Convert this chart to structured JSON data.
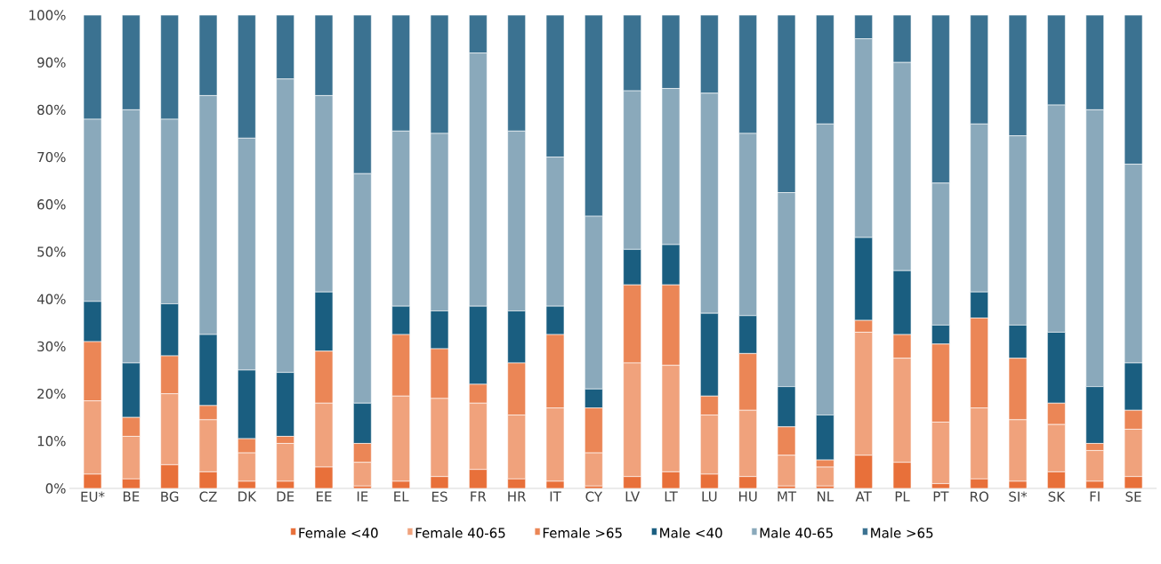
{
  "chart_data": {
    "type": "bar",
    "stacked": true,
    "categories": [
      "EU*",
      "BE",
      "BG",
      "CZ",
      "DK",
      "DE",
      "EE",
      "IE",
      "EL",
      "ES",
      "FR",
      "HR",
      "IT",
      "CY",
      "LV",
      "LT",
      "LU",
      "HU",
      "MT",
      "NL",
      "AT",
      "PL",
      "PT",
      "RO",
      "SI*",
      "SK",
      "FI",
      "SE"
    ],
    "series": [
      {
        "name": "Female <40",
        "color": "#e8703a",
        "values": [
          3,
          2,
          5,
          3.5,
          1.5,
          1.5,
          4.5,
          0.5,
          1.5,
          2.5,
          4,
          2,
          1.5,
          0.5,
          2.5,
          3.5,
          3,
          2.5,
          0.5,
          0.5,
          7,
          5.5,
          1,
          2,
          1.5,
          3.5,
          1.5,
          2.5
        ]
      },
      {
        "name": "Female 40-65",
        "color": "#f0a27c",
        "values": [
          15.5,
          9,
          15,
          11,
          6,
          8,
          13.5,
          5,
          18,
          16.5,
          14,
          13.5,
          15.5,
          7,
          24,
          22.5,
          12.5,
          14,
          6.5,
          4,
          26,
          22,
          13,
          15,
          13,
          10,
          6.5,
          10
        ]
      },
      {
        "name": "Female >65",
        "color": "#eb8656",
        "values": [
          12.5,
          4,
          8,
          3,
          3,
          1.5,
          11,
          4,
          13,
          10.5,
          4,
          11,
          15.5,
          9.5,
          16.5,
          17,
          4,
          12,
          6,
          1.5,
          2.5,
          5,
          16.5,
          19,
          13,
          4.5,
          1.5,
          4
        ]
      },
      {
        "name": "Male <40",
        "color": "#1a5e80",
        "values": [
          8.5,
          11.5,
          11,
          15,
          14.5,
          13.5,
          12.5,
          8.5,
          6,
          8,
          16.5,
          11,
          6,
          4,
          7.5,
          8.5,
          17.5,
          8,
          8.5,
          9.5,
          17.5,
          13.5,
          4,
          5.5,
          7,
          15,
          12,
          10
        ]
      },
      {
        "name": "Male 40-65",
        "color": "#8aa9bb",
        "values": [
          38.5,
          53.5,
          39,
          50.5,
          49,
          62,
          41.5,
          48.5,
          37,
          37.5,
          53.5,
          38,
          31.5,
          36.5,
          33.5,
          33,
          46.5,
          38.5,
          41,
          61.5,
          42,
          44,
          30,
          35.5,
          40,
          48,
          58.5,
          42
        ]
      },
      {
        "name": "Male >65",
        "color": "#3b7291",
        "values": [
          22,
          20,
          22,
          17,
          26,
          13.5,
          17,
          33.5,
          24.5,
          25,
          8,
          24.5,
          30,
          42.5,
          16,
          15.5,
          16.5,
          25,
          37.5,
          23,
          5,
          10,
          35.5,
          23,
          25.5,
          19,
          20,
          31.5
        ]
      }
    ],
    "ylim": [
      0,
      100
    ],
    "yticks": [
      {
        "value": 0,
        "label": "0%"
      },
      {
        "value": 10,
        "label": "10%"
      },
      {
        "value": 20,
        "label": "20%"
      },
      {
        "value": 30,
        "label": "30%"
      },
      {
        "value": 40,
        "label": "40%"
      },
      {
        "value": 50,
        "label": "50%"
      },
      {
        "value": 60,
        "label": "60%"
      },
      {
        "value": 70,
        "label": "70%"
      },
      {
        "value": 80,
        "label": "80%"
      },
      {
        "value": 90,
        "label": "90%"
      },
      {
        "value": 100,
        "label": "100%"
      }
    ],
    "legend": "bottom"
  }
}
